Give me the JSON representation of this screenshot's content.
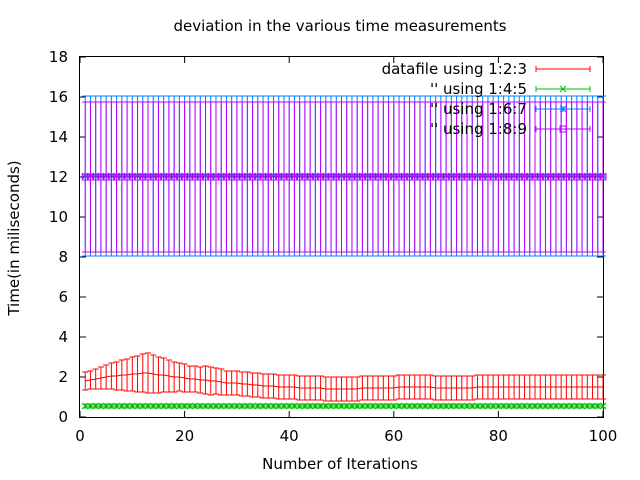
{
  "chart_data": {
    "type": "line",
    "title": "deviation in the various time measurements",
    "xlabel": "Number of Iterations",
    "ylabel": "Time(in miliseconds)",
    "xlim": [
      0,
      100
    ],
    "ylim": [
      0,
      18
    ],
    "xticks": [
      0,
      20,
      40,
      60,
      80,
      100
    ],
    "yticks": [
      0,
      2,
      4,
      6,
      8,
      10,
      12,
      14,
      16,
      18
    ],
    "legend_position": "top-right",
    "grid": false,
    "x": [
      1,
      2,
      3,
      4,
      5,
      6,
      7,
      8,
      9,
      10,
      11,
      12,
      13,
      14,
      15,
      16,
      17,
      18,
      19,
      20,
      21,
      22,
      23,
      24,
      25,
      26,
      27,
      28,
      29,
      30,
      31,
      32,
      33,
      34,
      35,
      36,
      37,
      38,
      39,
      40,
      41,
      42,
      43,
      44,
      45,
      46,
      47,
      48,
      49,
      50,
      51,
      52,
      53,
      54,
      55,
      56,
      57,
      58,
      59,
      60,
      61,
      62,
      63,
      64,
      65,
      66,
      67,
      68,
      69,
      70,
      71,
      72,
      73,
      74,
      75,
      76,
      77,
      78,
      79,
      80,
      81,
      82,
      83,
      84,
      85,
      86,
      87,
      88,
      89,
      90,
      91,
      92,
      93,
      94,
      95,
      96,
      97,
      98,
      99,
      100
    ],
    "series": [
      {
        "name": "datafile using 1:2:3",
        "color": "#ff0000",
        "point": "none",
        "y": [
          1.8,
          1.85,
          1.9,
          1.95,
          2.0,
          2.05,
          2.05,
          2.1,
          2.1,
          2.15,
          2.15,
          2.2,
          2.2,
          2.15,
          2.1,
          2.1,
          2.05,
          2.0,
          2.0,
          1.95,
          1.9,
          1.9,
          1.85,
          1.85,
          1.8,
          1.8,
          1.75,
          1.7,
          1.7,
          1.7,
          1.65,
          1.65,
          1.6,
          1.6,
          1.55,
          1.55,
          1.55,
          1.5,
          1.5,
          1.5,
          1.5,
          1.45,
          1.45,
          1.45,
          1.45,
          1.45,
          1.4,
          1.4,
          1.4,
          1.4,
          1.4,
          1.4,
          1.4,
          1.45,
          1.45,
          1.45,
          1.45,
          1.45,
          1.45,
          1.45,
          1.5,
          1.5,
          1.5,
          1.5,
          1.5,
          1.5,
          1.5,
          1.45,
          1.45,
          1.45,
          1.45,
          1.45,
          1.45,
          1.45,
          1.45,
          1.5,
          1.5,
          1.5,
          1.5,
          1.5,
          1.5,
          1.5,
          1.5,
          1.5,
          1.5,
          1.5,
          1.5,
          1.5,
          1.5,
          1.5,
          1.5,
          1.5,
          1.5,
          1.5,
          1.5,
          1.5,
          1.5,
          1.5,
          1.5,
          1.5
        ],
        "err": [
          0.45,
          0.45,
          0.5,
          0.55,
          0.6,
          0.65,
          0.7,
          0.75,
          0.8,
          0.85,
          0.9,
          0.95,
          1.0,
          0.95,
          0.9,
          0.85,
          0.8,
          0.75,
          0.7,
          0.7,
          0.65,
          0.65,
          0.65,
          0.7,
          0.7,
          0.65,
          0.65,
          0.6,
          0.6,
          0.6,
          0.6,
          0.6,
          0.6,
          0.6,
          0.6,
          0.6,
          0.6,
          0.6,
          0.6,
          0.6,
          0.6,
          0.6,
          0.6,
          0.6,
          0.6,
          0.6,
          0.6,
          0.6,
          0.6,
          0.6,
          0.6,
          0.6,
          0.6,
          0.6,
          0.6,
          0.6,
          0.6,
          0.6,
          0.6,
          0.6,
          0.6,
          0.6,
          0.6,
          0.6,
          0.6,
          0.6,
          0.6,
          0.6,
          0.6,
          0.6,
          0.6,
          0.6,
          0.6,
          0.6,
          0.6,
          0.6,
          0.6,
          0.6,
          0.6,
          0.6,
          0.6,
          0.6,
          0.6,
          0.6,
          0.6,
          0.6,
          0.6,
          0.6,
          0.6,
          0.6,
          0.6,
          0.6,
          0.6,
          0.6,
          0.6,
          0.6,
          0.6,
          0.6,
          0.6,
          0.6
        ]
      },
      {
        "name": "'' using 1:4:5",
        "color": "#00c000",
        "point": "x",
        "y_value": 0.55,
        "err_value": 0.1
      },
      {
        "name": "'' using 1:6:7",
        "color": "#0080ff",
        "point": "star",
        "y_value": 12.05,
        "err_value": 4.0
      },
      {
        "name": "'' using 1:8:9",
        "color": "#c000ff",
        "point": "box",
        "y_value": 12.0,
        "err_value": 3.75
      }
    ]
  }
}
